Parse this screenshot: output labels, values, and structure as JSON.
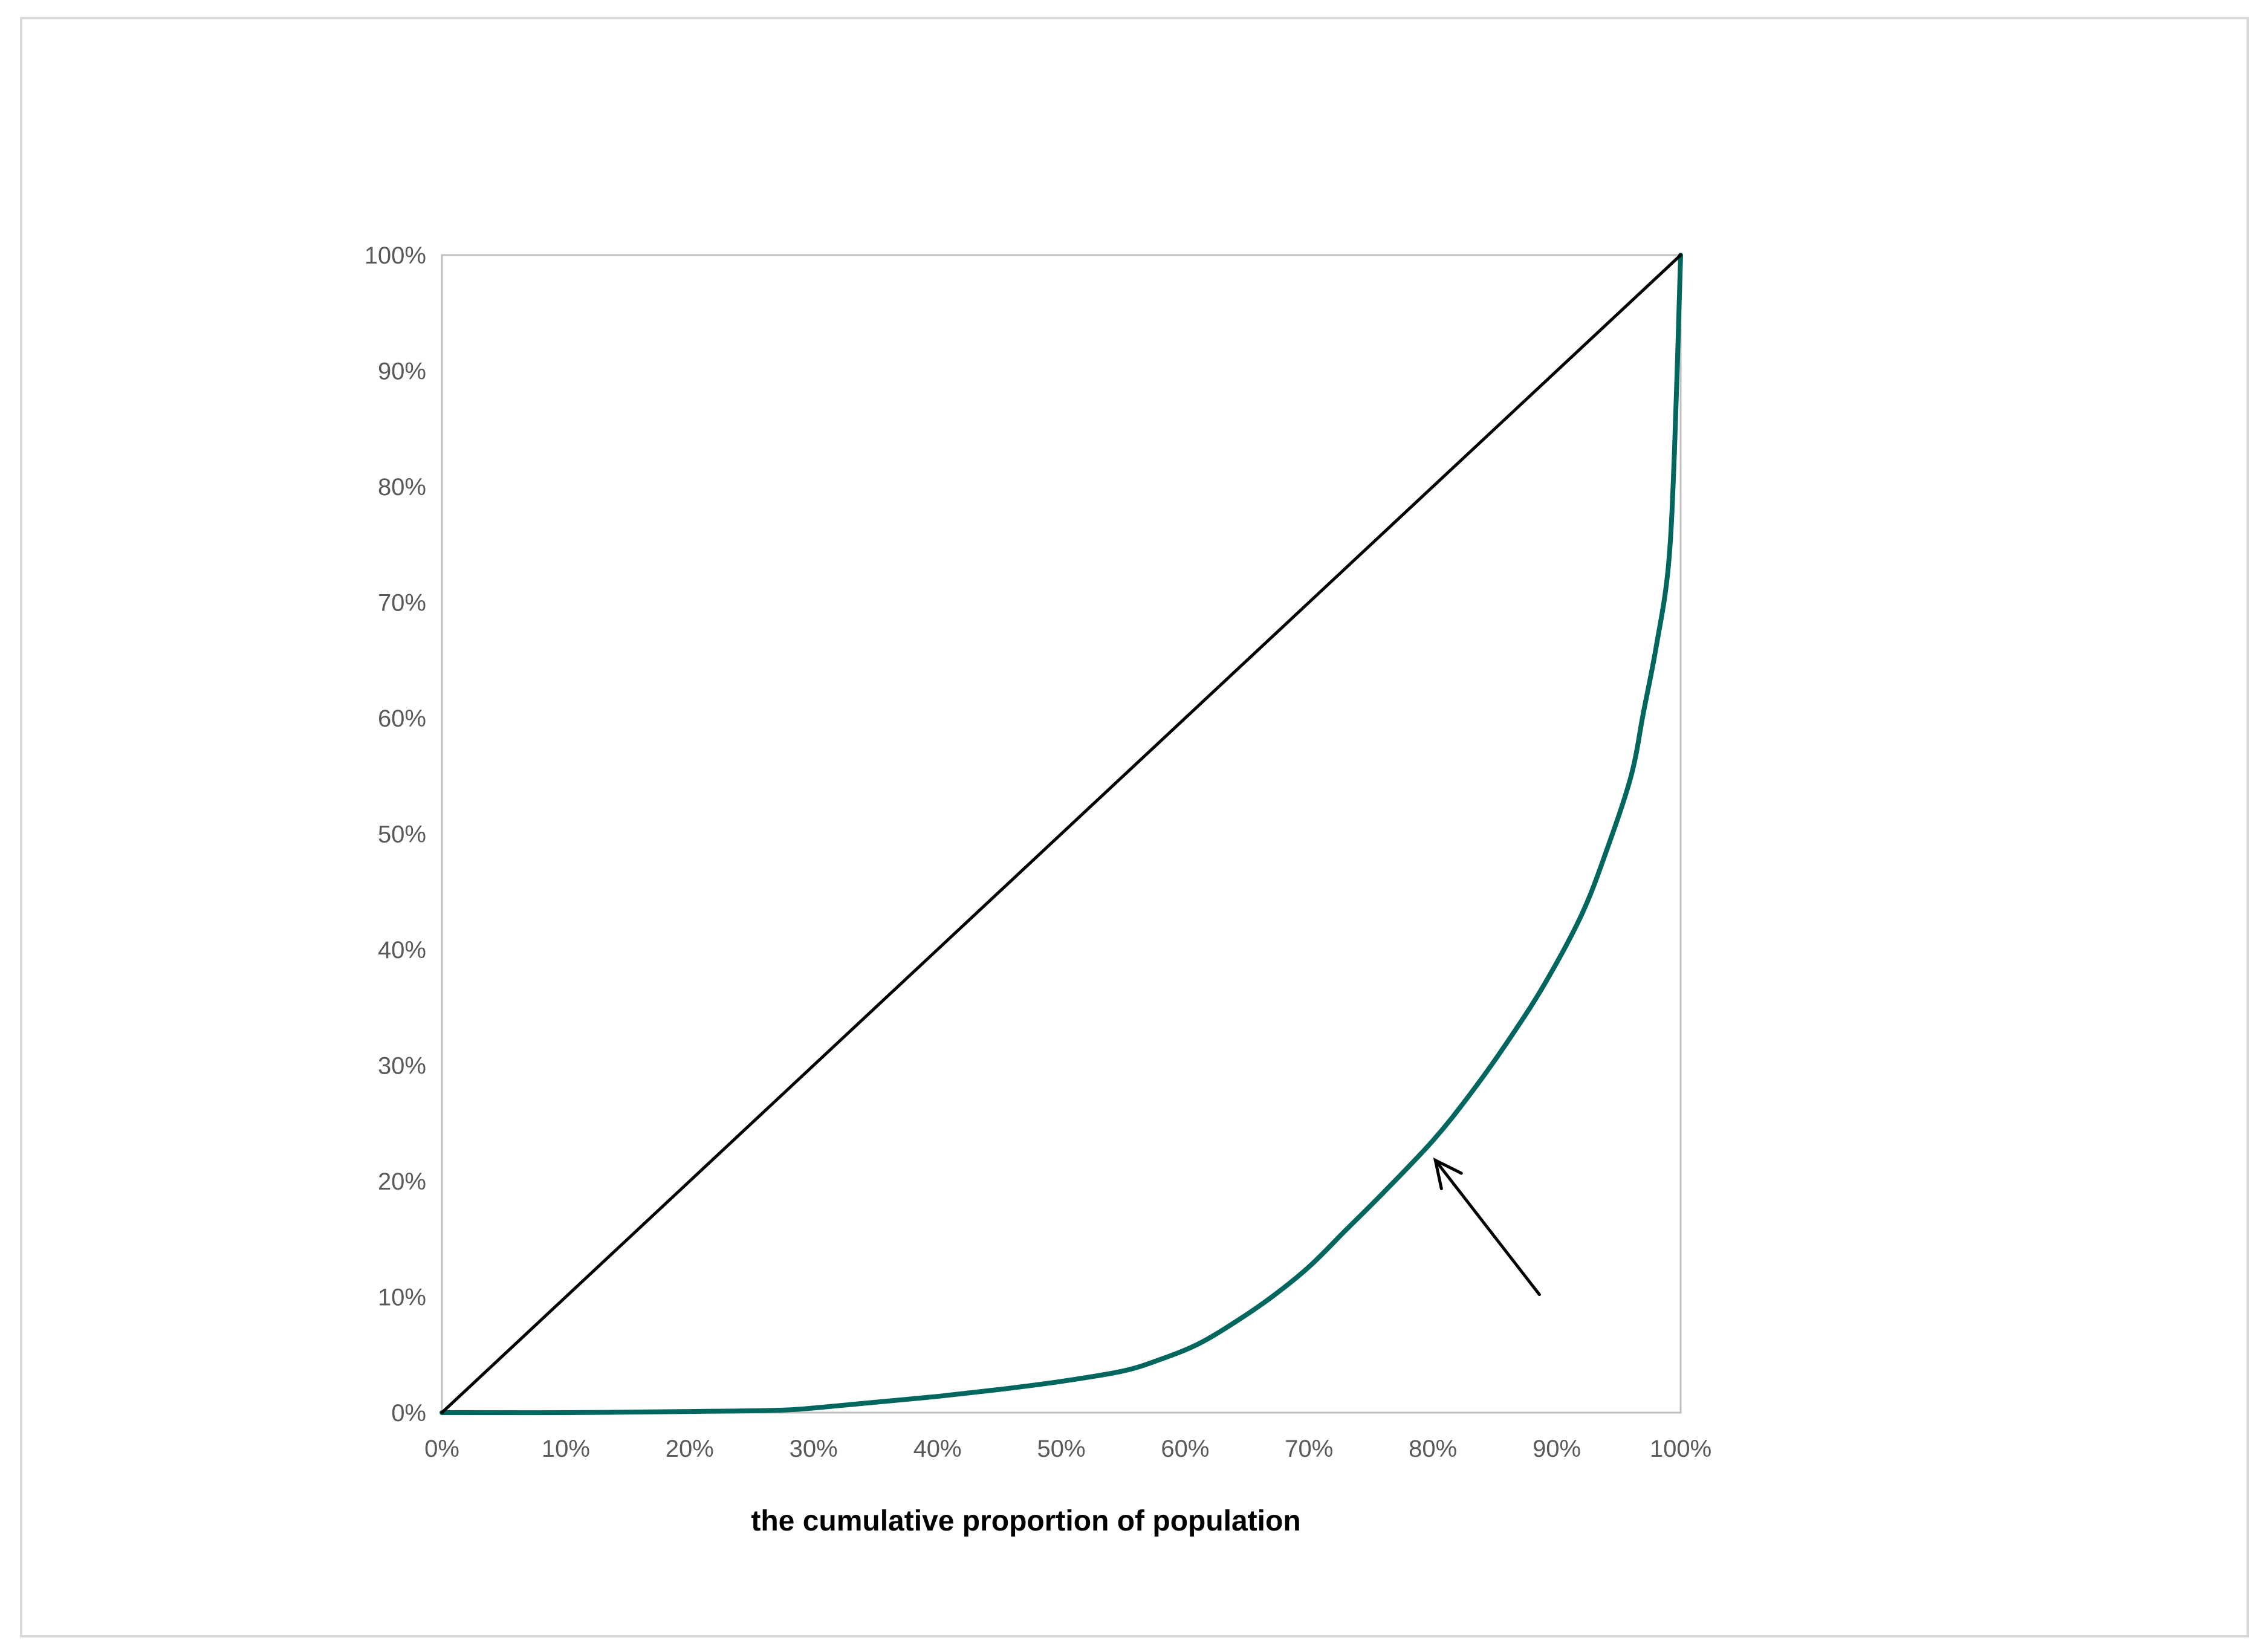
{
  "chart_data": {
    "type": "line",
    "title": "",
    "xlabel": "the cumulative proportion of population",
    "ylabel": "",
    "xlim": [
      0,
      100
    ],
    "ylim": [
      0,
      100
    ],
    "grid": false,
    "x_tick_labels": [
      "0%",
      "10%",
      "20%",
      "30%",
      "40%",
      "50%",
      "60%",
      "70%",
      "80%",
      "90%",
      "100%"
    ],
    "y_tick_labels": [
      "0%",
      "10%",
      "20%",
      "30%",
      "40%",
      "50%",
      "60%",
      "70%",
      "80%",
      "90%",
      "100%"
    ],
    "series": [
      {
        "color": "#00665e",
        "style": "curve",
        "x": [
          0,
          10,
          20,
          27,
          30,
          35,
          40,
          45,
          50,
          55,
          58,
          61,
          64,
          67,
          70,
          73,
          76,
          80,
          83,
          86,
          89,
          92,
          94,
          96,
          97,
          98,
          99,
          99.5,
          100
        ],
        "y": [
          0,
          0,
          0.1,
          0.2,
          0.4,
          0.9,
          1.4,
          2.0,
          2.7,
          3.6,
          4.6,
          5.9,
          7.8,
          10.0,
          12.6,
          15.8,
          19.0,
          23.5,
          27.5,
          32.0,
          37.0,
          43.0,
          48.5,
          55.0,
          60.5,
          66.0,
          73.0,
          83.0,
          100
        ]
      },
      {
        "color": "#000000",
        "style": "diagonal",
        "x": [
          0,
          100
        ],
        "y": [
          0,
          100
        ]
      }
    ],
    "annotations": [
      {
        "type": "arrow",
        "color": "#000000",
        "from": [
          88.6,
          10.2
        ],
        "to": [
          80.2,
          21.8
        ]
      }
    ]
  }
}
